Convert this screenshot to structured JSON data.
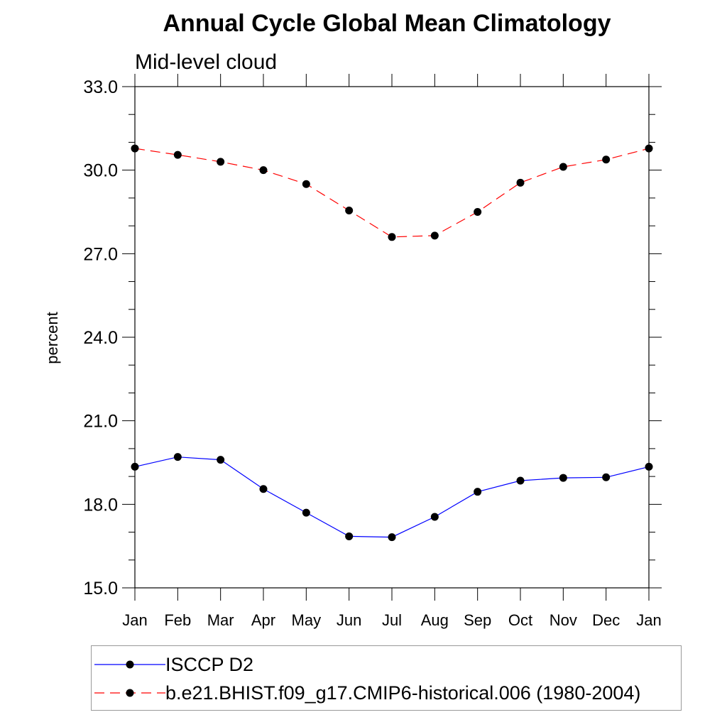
{
  "chart_data": {
    "type": "line",
    "title": "Annual Cycle Global Mean Climatology",
    "subtitle": "Mid-level cloud",
    "xlabel": "",
    "ylabel": "percent",
    "categories": [
      "Jan",
      "Feb",
      "Mar",
      "Apr",
      "May",
      "Jun",
      "Jul",
      "Aug",
      "Sep",
      "Oct",
      "Nov",
      "Dec",
      "Jan"
    ],
    "ylim": [
      15.0,
      33.0
    ],
    "yticks": [
      "15.0",
      "18.0",
      "21.0",
      "24.0",
      "27.0",
      "30.0",
      "33.0"
    ],
    "grid": false,
    "legend_position": "bottom",
    "series": [
      {
        "name": "ISCCP D2",
        "color": "#0000ff",
        "line_style": "solid",
        "marker": "filled-circle",
        "values": [
          19.35,
          19.7,
          19.6,
          18.55,
          17.7,
          16.85,
          16.82,
          17.55,
          18.45,
          18.85,
          18.95,
          18.97,
          19.35
        ]
      },
      {
        "name": "b.e21.BHIST.f09_g17.CMIP6-historical.006 (1980-2004)",
        "color": "#ff0000",
        "line_style": "dashed",
        "marker": "filled-circle",
        "values": [
          30.78,
          30.55,
          30.3,
          30.0,
          29.5,
          28.55,
          27.6,
          27.65,
          28.5,
          29.55,
          30.12,
          30.38,
          30.78
        ]
      }
    ]
  }
}
